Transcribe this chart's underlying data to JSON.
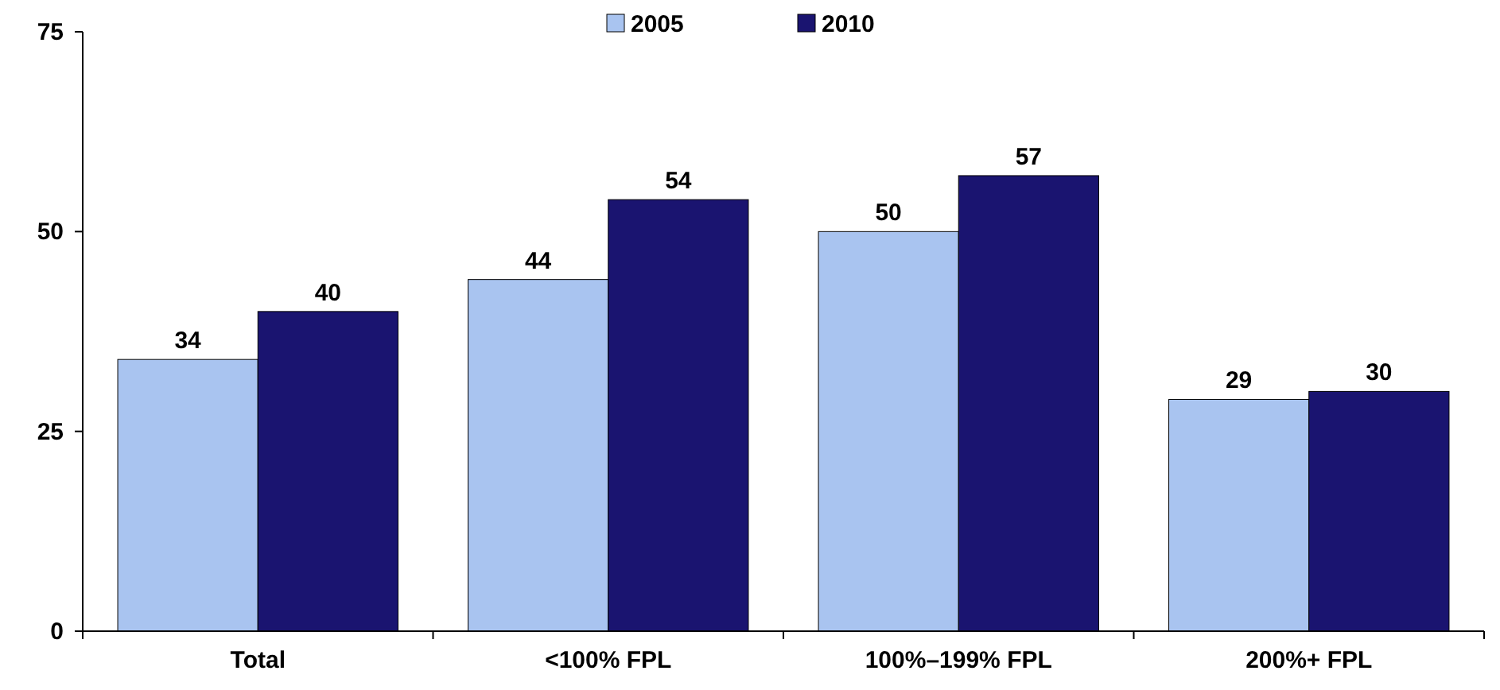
{
  "chart_data": {
    "type": "bar",
    "categories": [
      "Total",
      "<100% FPL",
      "100%–199% FPL",
      "200%+ FPL"
    ],
    "series": [
      {
        "name": "2005",
        "color": "#a9c4f0",
        "values": [
          34,
          44,
          50,
          29
        ]
      },
      {
        "name": "2010",
        "color": "#1a1470",
        "values": [
          40,
          54,
          57,
          30
        ]
      }
    ],
    "ylim": [
      0,
      75
    ],
    "yticks": [
      0,
      25,
      50,
      75
    ],
    "data_labels": true,
    "legend": "top",
    "grid": false
  }
}
